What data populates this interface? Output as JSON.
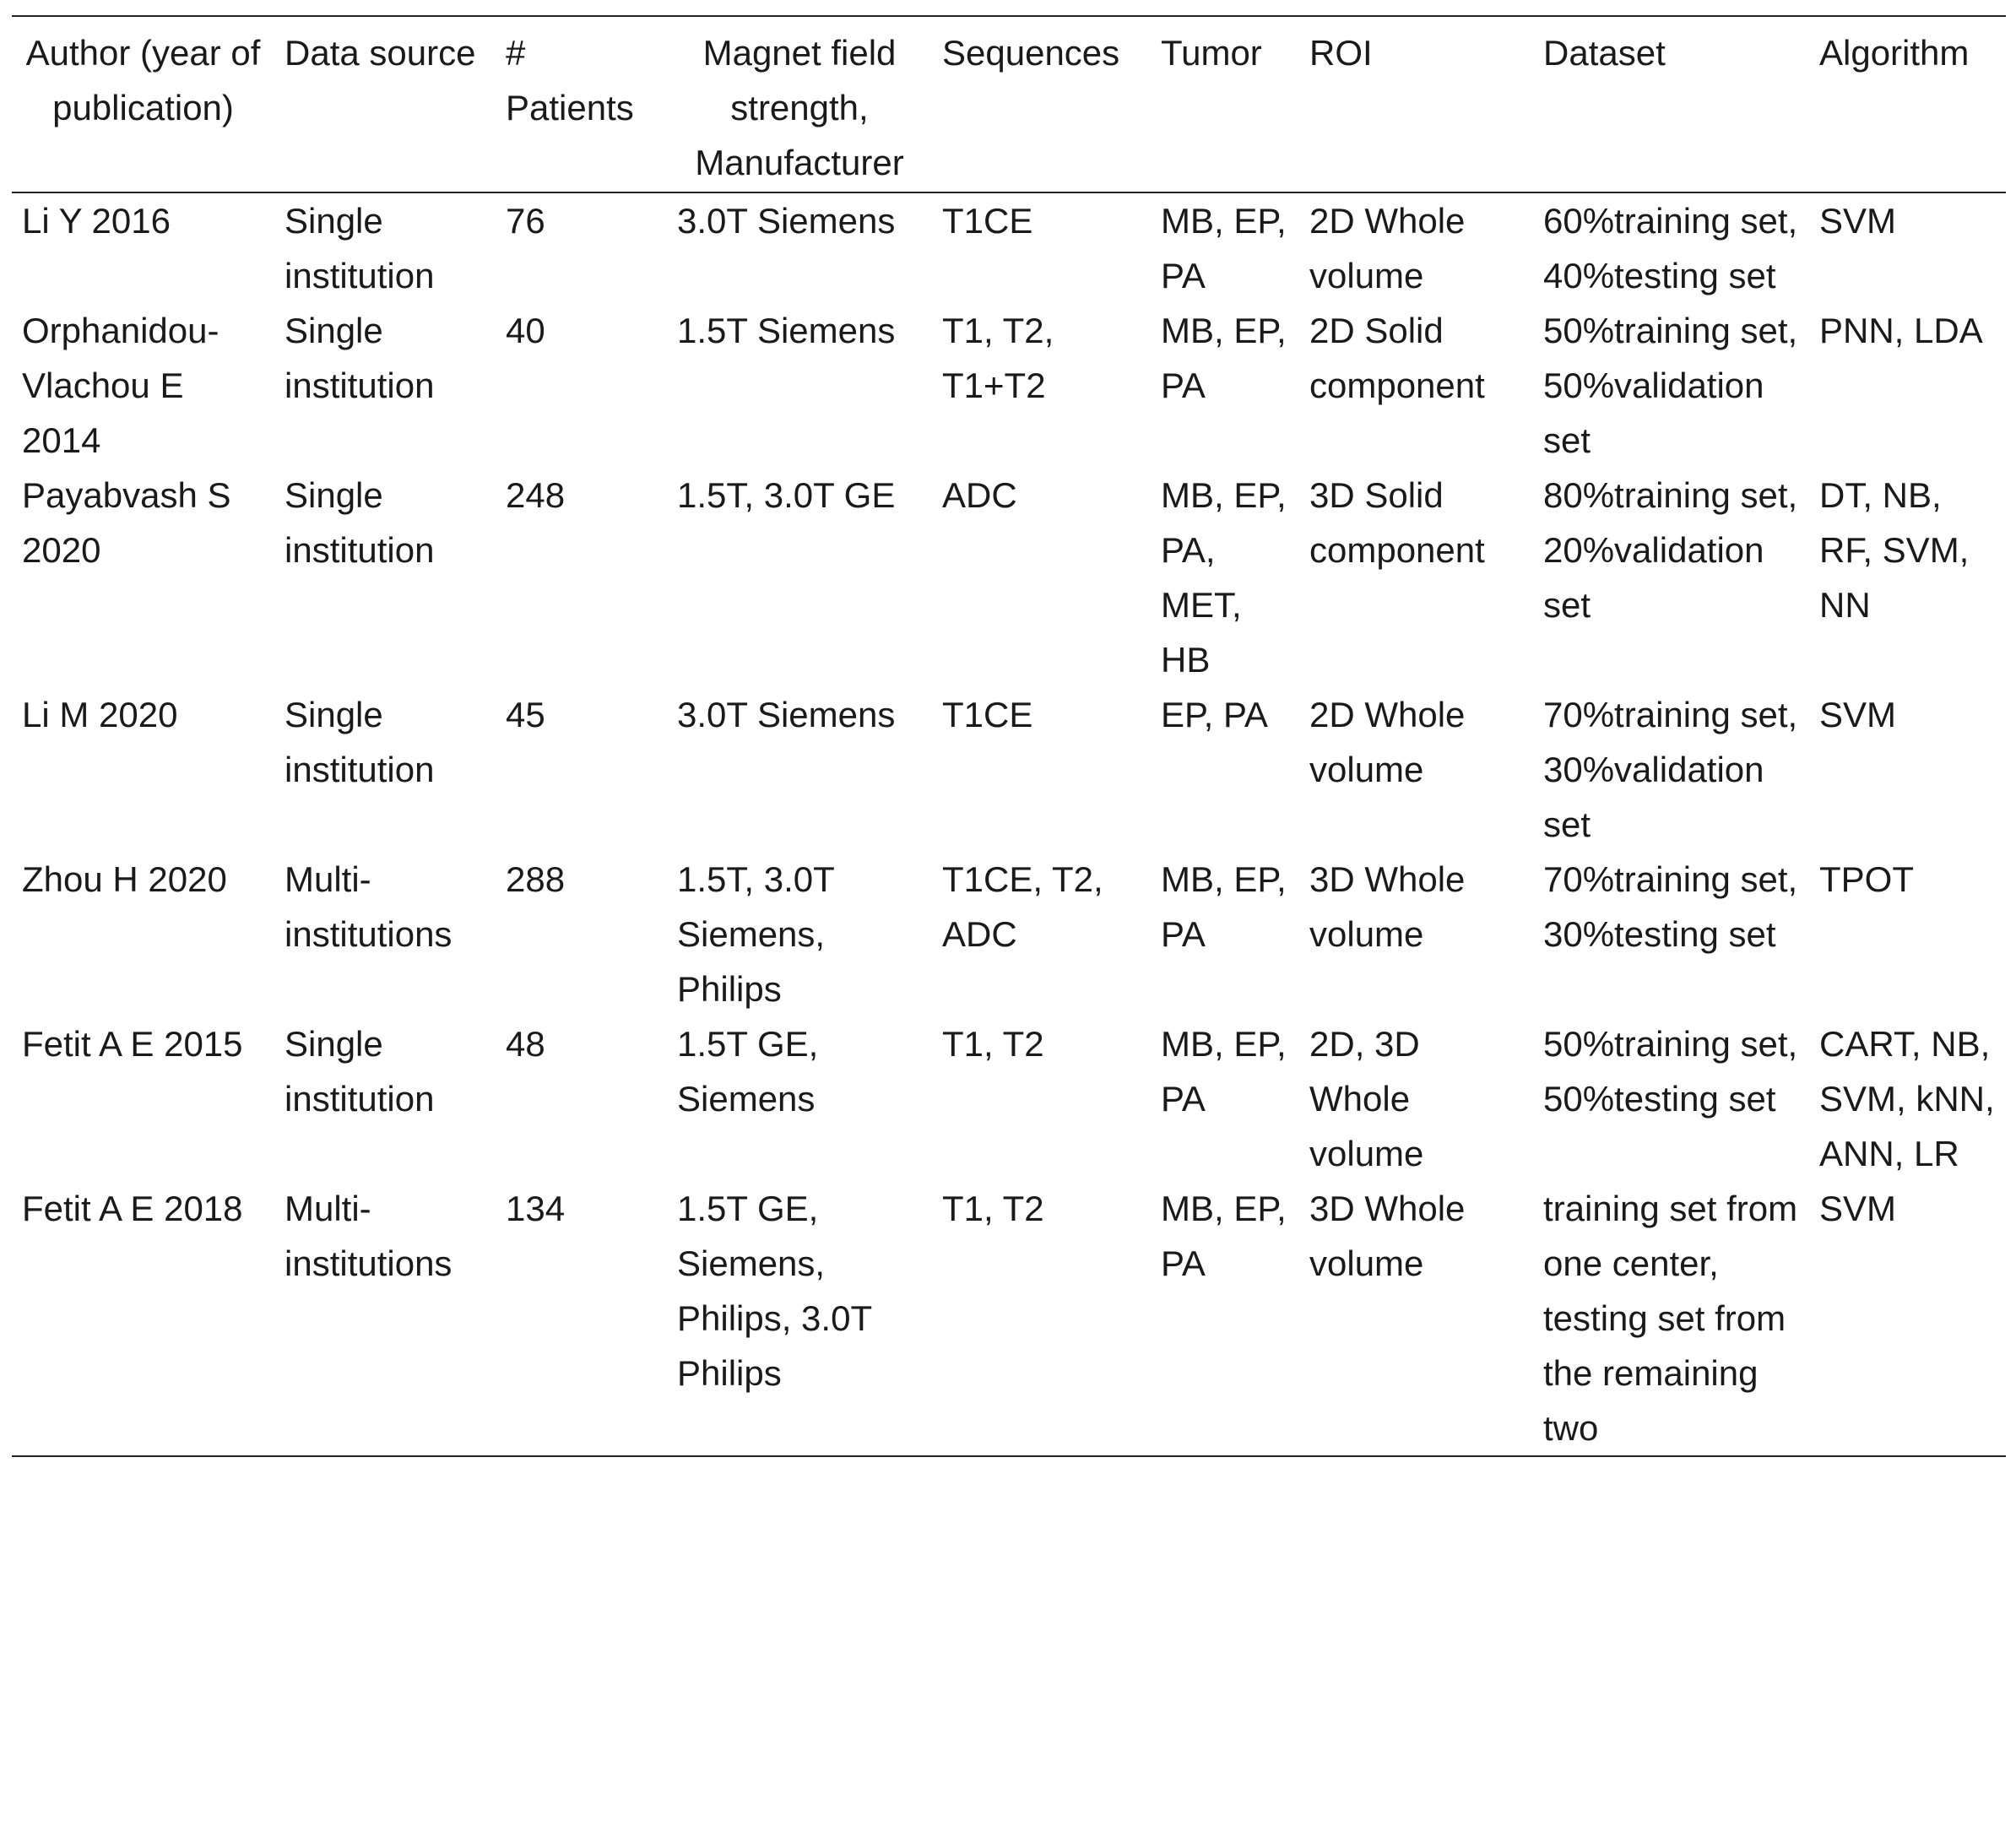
{
  "table": {
    "header": [
      "Author (year of publication)",
      "Data source",
      "# Patients",
      "Magnet field strength, Manufacturer",
      "Sequences",
      "Tumor",
      "ROI",
      "Dataset",
      "Algorithm"
    ],
    "rows": [
      [
        "Li Y 2016",
        "Single institution",
        "76",
        "3.0T Siemens",
        "T1CE",
        "MB, EP, PA",
        "2D Whole volume",
        "60%training set, 40%testing set",
        "SVM"
      ],
      [
        "Orphanidou-Vlachou E 2014",
        "Single institution",
        "40",
        "1.5T Siemens",
        "T1, T2, T1+T2",
        "MB, EP, PA",
        "2D Solid component",
        "50%training set, 50%validation set",
        "PNN, LDA"
      ],
      [
        "Payabvash S 2020",
        "Single institution",
        "248",
        "1.5T, 3.0T GE",
        "ADC",
        "MB, EP, PA, MET, HB",
        "3D Solid component",
        "80%training set, 20%validation set",
        "DT, NB, RF, SVM, NN"
      ],
      [
        "Li M 2020",
        "Single institution",
        "45",
        "3.0T Siemens",
        "T1CE",
        "EP, PA",
        "2D Whole volume",
        "70%training set, 30%validation set",
        "SVM"
      ],
      [
        "Zhou H 2020",
        "Multi-institutions",
        "288",
        "1.5T, 3.0T Siemens, Philips",
        "T1CE, T2, ADC",
        "MB, EP, PA",
        "3D Whole volume",
        "70%training set, 30%testing set",
        "TPOT"
      ],
      [
        "Fetit A E 2015",
        "Single institution",
        "48",
        "1.5T GE, Siemens",
        "T1, T2",
        "MB, EP, PA",
        "2D, 3D Whole volume",
        "50%training set, 50%testing set",
        "CART, NB, SVM, kNN, ANN, LR"
      ],
      [
        "Fetit A E 2018",
        "Multi-institutions",
        "134",
        "1.5T GE, Siemens, Philips, 3.0T Philips",
        "T1, T2",
        "MB, EP, PA",
        "3D Whole volume",
        "training set from one center, testing set from the remaining two",
        "SVM"
      ]
    ]
  }
}
